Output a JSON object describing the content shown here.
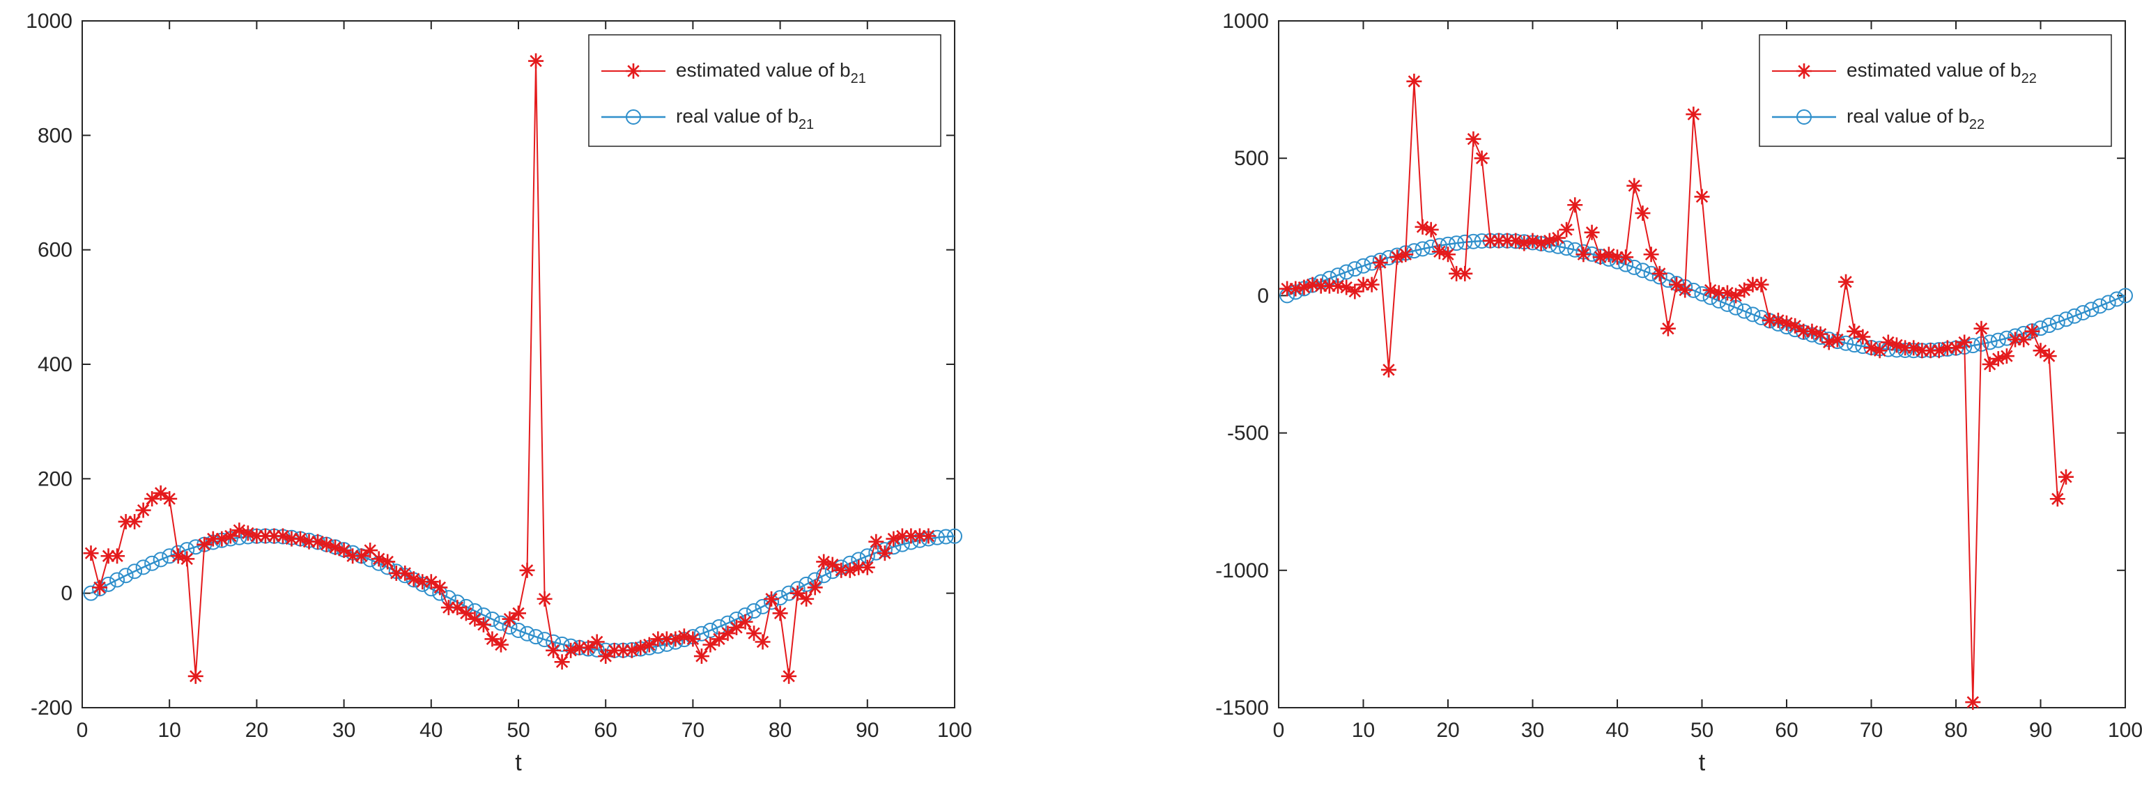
{
  "colors": {
    "estimated": "#e41a1c",
    "real": "#2f8fcb",
    "axis": "#262626"
  },
  "chart_data": [
    {
      "type": "line",
      "xlabel": "t",
      "ylabel": "",
      "title": "",
      "xlim": [
        0,
        100
      ],
      "ylim": [
        -200,
        1000
      ],
      "xticks": [
        0,
        10,
        20,
        30,
        40,
        50,
        60,
        70,
        80,
        90,
        100
      ],
      "yticks": [
        -200,
        0,
        200,
        400,
        600,
        800,
        1000
      ],
      "legend_position": "top-right",
      "series": [
        {
          "name": "estimated value of b21",
          "label_main": "estimated value of b",
          "label_sub": "21",
          "marker": "asterisk",
          "x": [
            1,
            2,
            3,
            4,
            5,
            6,
            7,
            8,
            9,
            10,
            11,
            12,
            13,
            14,
            15,
            16,
            17,
            18,
            19,
            20,
            21,
            22,
            23,
            24,
            25,
            26,
            27,
            28,
            29,
            30,
            31,
            32,
            33,
            34,
            35,
            36,
            37,
            38,
            39,
            40,
            41,
            42,
            43,
            44,
            45,
            46,
            47,
            48,
            49,
            50,
            51,
            52,
            53,
            54,
            55,
            56,
            57,
            58,
            59,
            60,
            61,
            62,
            63,
            64,
            65,
            66,
            67,
            68,
            69,
            70,
            71,
            72,
            73,
            74,
            75,
            76,
            77,
            78,
            79,
            80,
            81,
            82,
            83,
            84,
            85,
            86,
            87,
            88,
            89,
            90,
            91,
            92,
            93,
            94,
            95,
            96,
            97
          ],
          "y": [
            70,
            10,
            65,
            65,
            125,
            125,
            145,
            165,
            175,
            165,
            65,
            60,
            -145,
            85,
            95,
            95,
            100,
            110,
            105,
            100,
            100,
            100,
            100,
            95,
            95,
            90,
            90,
            85,
            80,
            75,
            65,
            65,
            75,
            60,
            55,
            35,
            35,
            25,
            20,
            20,
            10,
            -25,
            -25,
            -35,
            -45,
            -55,
            -80,
            -90,
            -45,
            -35,
            40,
            930,
            -10,
            -100,
            -120,
            -100,
            -95,
            -95,
            -85,
            -110,
            -100,
            -100,
            -100,
            -95,
            -90,
            -80,
            -80,
            -80,
            -75,
            -80,
            -110,
            -90,
            -80,
            -70,
            -60,
            -50,
            -70,
            -85,
            -10,
            -35,
            -145,
            0,
            -10,
            10,
            55,
            50,
            40,
            40,
            45,
            45,
            90,
            70,
            95,
            100,
            100,
            100,
            100
          ]
        },
        {
          "name": "real value of b21",
          "label_main": "real value of b",
          "label_sub": "21",
          "marker": "circle",
          "x_range": [
            1,
            100
          ],
          "amplitude": 100,
          "period": 80,
          "phase_start": 1,
          "model": "A*sin(2*pi*(t-1)/period)"
        }
      ]
    },
    {
      "type": "line",
      "xlabel": "t",
      "ylabel": "",
      "title": "",
      "xlim": [
        0,
        100
      ],
      "ylim": [
        -1500,
        1000
      ],
      "xticks": [
        0,
        10,
        20,
        30,
        40,
        50,
        60,
        70,
        80,
        90,
        100
      ],
      "yticks": [
        -1500,
        -1000,
        -500,
        0,
        500,
        1000
      ],
      "legend_position": "top-right",
      "series": [
        {
          "name": "estimated value of b22",
          "label_main": "estimated value of b",
          "label_sub": "22",
          "marker": "asterisk",
          "x": [
            1,
            2,
            3,
            4,
            5,
            6,
            7,
            8,
            9,
            10,
            11,
            12,
            13,
            14,
            15,
            16,
            17,
            18,
            19,
            20,
            21,
            22,
            23,
            24,
            25,
            26,
            27,
            28,
            29,
            30,
            31,
            32,
            33,
            34,
            35,
            36,
            37,
            38,
            39,
            40,
            41,
            42,
            43,
            44,
            45,
            46,
            47,
            48,
            49,
            50,
            51,
            52,
            53,
            54,
            55,
            56,
            57,
            58,
            59,
            60,
            61,
            62,
            63,
            64,
            65,
            66,
            67,
            68,
            69,
            70,
            71,
            72,
            73,
            74,
            75,
            76,
            77,
            78,
            79,
            80,
            81,
            82,
            83,
            84,
            85,
            86,
            87,
            88,
            89,
            90,
            91,
            92,
            93
          ],
          "y": [
            25,
            25,
            30,
            40,
            35,
            35,
            35,
            30,
            15,
            40,
            40,
            120,
            -270,
            140,
            150,
            780,
            250,
            240,
            160,
            150,
            80,
            80,
            570,
            500,
            200,
            200,
            200,
            200,
            190,
            200,
            190,
            200,
            210,
            240,
            330,
            150,
            230,
            140,
            150,
            140,
            140,
            400,
            300,
            150,
            80,
            -120,
            40,
            20,
            660,
            360,
            20,
            10,
            10,
            0,
            20,
            40,
            40,
            -90,
            -90,
            -100,
            -110,
            -130,
            -130,
            -140,
            -170,
            -160,
            50,
            -130,
            -150,
            -190,
            -200,
            -170,
            -180,
            -190,
            -190,
            -200,
            -200,
            -200,
            -190,
            -190,
            -170,
            -1480,
            -120,
            -250,
            -230,
            -220,
            -160,
            -160,
            -130,
            -200,
            -220,
            -740,
            -660
          ]
        },
        {
          "name": "real value of b22",
          "label_main": "real value of b",
          "label_sub": "22",
          "marker": "circle",
          "x_range": [
            1,
            100
          ],
          "amplitude": 200,
          "period": 99,
          "phase_start": 1,
          "model": "A*sin(2*pi*(t-1)/period)"
        }
      ]
    }
  ]
}
